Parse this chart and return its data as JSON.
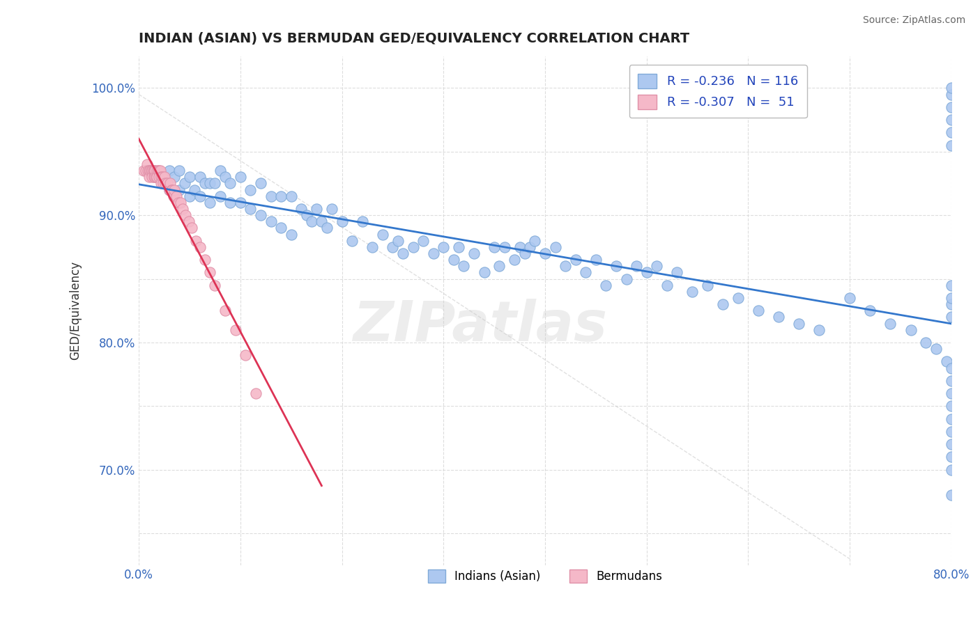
{
  "title": "INDIAN (ASIAN) VS BERMUDAN GED/EQUIVALENCY CORRELATION CHART",
  "source_text": "Source: ZipAtlas.com",
  "ylabel": "GED/Equivalency",
  "xlim": [
    0.0,
    0.8
  ],
  "ylim": [
    0.625,
    1.025
  ],
  "blue_color": "#adc8f0",
  "blue_edge_color": "#80aad8",
  "pink_color": "#f5b8c8",
  "pink_edge_color": "#e090a8",
  "blue_line_color": "#3377cc",
  "pink_line_color": "#dd3355",
  "R_blue": -0.236,
  "N_blue": 116,
  "R_pink": -0.307,
  "N_pink": 51,
  "legend_label_blue": "Indians (Asian)",
  "legend_label_pink": "Bermudans",
  "watermark": "ZIPatlas",
  "blue_scatter_x": [
    0.01,
    0.02,
    0.025,
    0.03,
    0.03,
    0.035,
    0.04,
    0.04,
    0.045,
    0.05,
    0.05,
    0.055,
    0.06,
    0.06,
    0.065,
    0.07,
    0.07,
    0.075,
    0.08,
    0.08,
    0.085,
    0.09,
    0.09,
    0.1,
    0.1,
    0.11,
    0.11,
    0.12,
    0.12,
    0.13,
    0.13,
    0.14,
    0.14,
    0.15,
    0.15,
    0.16,
    0.165,
    0.17,
    0.175,
    0.18,
    0.185,
    0.19,
    0.2,
    0.21,
    0.22,
    0.23,
    0.24,
    0.25,
    0.255,
    0.26,
    0.27,
    0.28,
    0.29,
    0.3,
    0.31,
    0.315,
    0.32,
    0.33,
    0.34,
    0.35,
    0.355,
    0.36,
    0.37,
    0.375,
    0.38,
    0.385,
    0.39,
    0.4,
    0.41,
    0.42,
    0.43,
    0.44,
    0.45,
    0.46,
    0.47,
    0.48,
    0.49,
    0.5,
    0.51,
    0.52,
    0.53,
    0.545,
    0.56,
    0.575,
    0.59,
    0.61,
    0.63,
    0.65,
    0.67,
    0.7,
    0.72,
    0.74,
    0.76,
    0.775,
    0.785,
    0.795,
    0.8,
    0.8,
    0.8,
    0.8,
    0.8,
    0.8,
    0.8,
    0.8,
    0.8,
    0.8,
    0.8,
    0.8,
    0.8,
    0.8,
    0.8,
    0.8,
    0.8,
    0.8,
    0.8,
    0.8
  ],
  "blue_scatter_y": [
    0.935,
    0.93,
    0.925,
    0.935,
    0.92,
    0.93,
    0.935,
    0.92,
    0.925,
    0.93,
    0.915,
    0.92,
    0.93,
    0.915,
    0.925,
    0.925,
    0.91,
    0.925,
    0.935,
    0.915,
    0.93,
    0.925,
    0.91,
    0.93,
    0.91,
    0.92,
    0.905,
    0.925,
    0.9,
    0.915,
    0.895,
    0.915,
    0.89,
    0.915,
    0.885,
    0.905,
    0.9,
    0.895,
    0.905,
    0.895,
    0.89,
    0.905,
    0.895,
    0.88,
    0.895,
    0.875,
    0.885,
    0.875,
    0.88,
    0.87,
    0.875,
    0.88,
    0.87,
    0.875,
    0.865,
    0.875,
    0.86,
    0.87,
    0.855,
    0.875,
    0.86,
    0.875,
    0.865,
    0.875,
    0.87,
    0.875,
    0.88,
    0.87,
    0.875,
    0.86,
    0.865,
    0.855,
    0.865,
    0.845,
    0.86,
    0.85,
    0.86,
    0.855,
    0.86,
    0.845,
    0.855,
    0.84,
    0.845,
    0.83,
    0.835,
    0.825,
    0.82,
    0.815,
    0.81,
    0.835,
    0.825,
    0.815,
    0.81,
    0.8,
    0.795,
    0.785,
    0.78,
    0.77,
    0.76,
    0.75,
    0.74,
    0.73,
    0.72,
    0.71,
    0.7,
    0.68,
    0.995,
    1.0,
    0.985,
    0.975,
    0.965,
    0.955,
    0.845,
    0.83,
    0.835,
    0.82
  ],
  "pink_scatter_x": [
    0.005,
    0.007,
    0.008,
    0.009,
    0.01,
    0.01,
    0.011,
    0.012,
    0.013,
    0.013,
    0.014,
    0.015,
    0.015,
    0.016,
    0.016,
    0.017,
    0.018,
    0.018,
    0.019,
    0.02,
    0.02,
    0.021,
    0.022,
    0.022,
    0.023,
    0.024,
    0.025,
    0.026,
    0.028,
    0.03,
    0.031,
    0.032,
    0.033,
    0.034,
    0.035,
    0.037,
    0.039,
    0.041,
    0.043,
    0.046,
    0.049,
    0.052,
    0.056,
    0.06,
    0.065,
    0.07,
    0.075,
    0.085,
    0.095,
    0.105,
    0.115
  ],
  "pink_scatter_y": [
    0.935,
    0.935,
    0.94,
    0.935,
    0.935,
    0.93,
    0.935,
    0.935,
    0.935,
    0.93,
    0.935,
    0.935,
    0.93,
    0.935,
    0.93,
    0.93,
    0.935,
    0.93,
    0.935,
    0.935,
    0.93,
    0.935,
    0.93,
    0.925,
    0.93,
    0.925,
    0.93,
    0.925,
    0.925,
    0.92,
    0.925,
    0.92,
    0.92,
    0.915,
    0.92,
    0.915,
    0.91,
    0.91,
    0.905,
    0.9,
    0.895,
    0.89,
    0.88,
    0.875,
    0.865,
    0.855,
    0.845,
    0.825,
    0.81,
    0.79,
    0.76
  ]
}
